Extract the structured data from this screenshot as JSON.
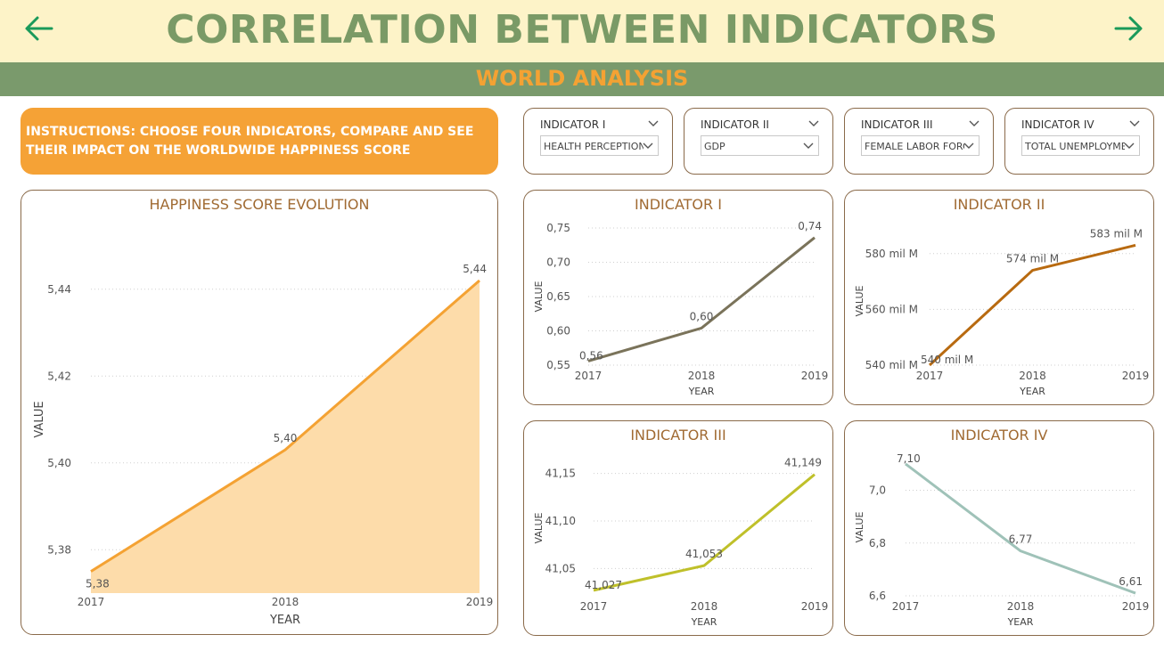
{
  "header": {
    "title": "CORRELATION BETWEEN INDICATORS",
    "subtitle": "WORLD ANALYSIS",
    "back_icon": "arrow-left-icon",
    "forward_icon": "arrow-right-icon",
    "colors": {
      "band": "#fdf3c8",
      "title": "#7a9a66",
      "subband": "#7a9a6c",
      "subtitle": "#f4a233",
      "arrow": "#1a9a5a"
    }
  },
  "instructions": "INSTRUCTIONS: CHOOSE FOUR INDICATORS, COMPARE AND SEE THEIR IMPACT ON THE WORLDWIDE HAPPINESS SCORE",
  "slicers": [
    {
      "title": "INDICATOR I",
      "value": "HEALTH PERCEPTION"
    },
    {
      "title": "INDICATOR II",
      "value": "GDP"
    },
    {
      "title": "INDICATOR III",
      "value": "FEMALE LABOR FORCE"
    },
    {
      "title": "INDICATOR IV",
      "value": "TOTAL UNEMPLOYME..."
    }
  ],
  "chart_data": [
    {
      "type": "area",
      "title": "HAPPINESS SCORE EVOLUTION",
      "xlabel": "YEAR",
      "ylabel": "VALUE",
      "x": [
        "2017",
        "2018",
        "2019"
      ],
      "values": [
        5.375,
        5.403,
        5.442
      ],
      "data_labels": [
        "5,38",
        "5,40",
        "5,44"
      ],
      "yticks": [
        5.38,
        5.4,
        5.42,
        5.44
      ],
      "ytick_labels": [
        "5,38",
        "5,40",
        "5,42",
        "5,44"
      ],
      "ylim": [
        5.37,
        5.45
      ],
      "color": "#f4a233",
      "fill": "#fddcaa",
      "grid": true
    },
    {
      "type": "line",
      "title": "INDICATOR I",
      "xlabel": "YEAR",
      "ylabel": "VALUE",
      "x": [
        "2017",
        "2018",
        "2019"
      ],
      "values": [
        0.556,
        0.604,
        0.736
      ],
      "data_labels": [
        "0,56",
        "0,60",
        "0,74"
      ],
      "yticks": [
        0.55,
        0.6,
        0.65,
        0.7,
        0.75
      ],
      "ytick_labels": [
        "0,55",
        "0,60",
        "0,65",
        "0,70",
        "0,75"
      ],
      "ylim": [
        0.55,
        0.75
      ],
      "color": "#7a735a",
      "grid": true
    },
    {
      "type": "line",
      "title": "INDICATOR II",
      "xlabel": "YEAR",
      "ylabel": "VALUE",
      "x": [
        "2017",
        "2018",
        "2019"
      ],
      "values": [
        540,
        574,
        583
      ],
      "data_labels": [
        "540 mil M",
        "574 mil M",
        "583 mil M"
      ],
      "yticks": [
        540,
        560,
        580
      ],
      "ytick_labels": [
        "540 mil M",
        "560 mil M",
        "580 mil M"
      ],
      "ylim": [
        540,
        586
      ],
      "color": "#b86a10",
      "grid": true
    },
    {
      "type": "line",
      "title": "INDICATOR III",
      "xlabel": "YEAR",
      "ylabel": "VALUE",
      "x": [
        "2017",
        "2018",
        "2019"
      ],
      "values": [
        41.027,
        41.053,
        41.149
      ],
      "data_labels": [
        "41,027",
        "41,053",
        "41,149"
      ],
      "yticks": [
        41.05,
        41.1,
        41.15
      ],
      "ytick_labels": [
        "41,05",
        "41,10",
        "41,15"
      ],
      "ylim": [
        41.025,
        41.16
      ],
      "color": "#bfc02a",
      "grid": true
    },
    {
      "type": "line",
      "title": "INDICATOR IV",
      "xlabel": "YEAR",
      "ylabel": "VALUE",
      "x": [
        "2017",
        "2018",
        "2019"
      ],
      "values": [
        7.1,
        6.77,
        6.61
      ],
      "data_labels": [
        "7,10",
        "6,77",
        "6,61"
      ],
      "yticks": [
        6.6,
        6.8,
        7.0
      ],
      "ytick_labels": [
        "6,6",
        "6,8",
        "7,0"
      ],
      "ylim": [
        6.6,
        7.12
      ],
      "color": "#9fc2b8",
      "grid": true
    }
  ]
}
